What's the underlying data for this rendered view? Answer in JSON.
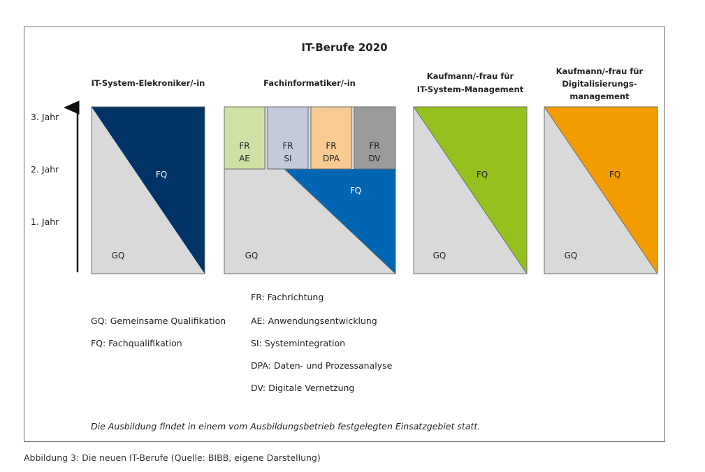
{
  "title": "IT-Berufe 2020",
  "years": [
    "3. Jahr",
    "2. Jahr",
    "1. Jahr"
  ],
  "columns": [
    {
      "header": [
        "IT-System-Elekroniker/-in"
      ],
      "gq": "GQ",
      "fq": "FQ",
      "color": "#003366"
    },
    {
      "header": [
        "Fachinformatiker/-in"
      ],
      "gq": "GQ",
      "fq": "FQ",
      "color": "#0066b3",
      "specializations": [
        {
          "line1": "FR",
          "line2": "AE",
          "color": "#cfe1a5"
        },
        {
          "line1": "FR",
          "line2": "SI",
          "color": "#c4c9dc"
        },
        {
          "line1": "FR",
          "line2": "DPA",
          "color": "#f9cb94"
        },
        {
          "line1": "FR",
          "line2": "DV",
          "color": "#9b9b9b"
        }
      ]
    },
    {
      "header": [
        "Kaufmann/-frau für",
        "IT-System-Management"
      ],
      "gq": "GQ",
      "fq": "FQ",
      "color": "#95c11f"
    },
    {
      "header": [
        "Kaufmann/-frau für",
        "Digitalisierungs-",
        "management"
      ],
      "gq": "GQ",
      "fq": "FQ",
      "color": "#f39c00"
    }
  ],
  "legend_left": [
    "GQ: Gemeinsame Qualifikation",
    "FQ: Fachqualifikation"
  ],
  "legend_right": [
    "FR: Fachrichtung",
    "AE: Anwendungsentwicklung",
    "SI: Systemintegration",
    "DPA: Daten- und Prozessanalyse",
    "DV: Digitale Vernetzung"
  ],
  "footnote": "Die Ausbildung findet in einem vom Ausbildungsbetrieb festgelegten Einsatzgebiet statt.",
  "caption": "Abbildung 3: Die neuen IT-Berufe (Quelle: BIBB, eigene Darstellung)",
  "colors": {
    "gq_gray": "#d9d9d9",
    "border": "#6d6d6d"
  }
}
